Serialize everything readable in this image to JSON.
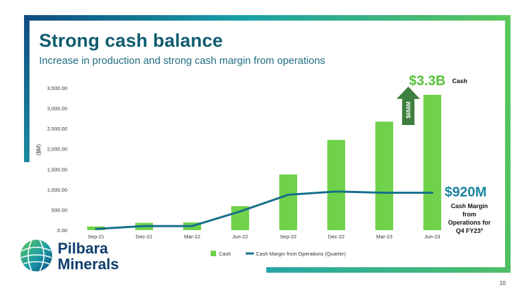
{
  "slide": {
    "title": "Strong cash balance",
    "subtitle": "Increase in production and strong cash margin from operations",
    "page_number": "10",
    "logo_text": [
      "Pilbara",
      "Minerals"
    ]
  },
  "colors": {
    "bar": "#6fd24a",
    "line": "#136e8c",
    "title": "#0f5c6e",
    "arrow": "#3f7f3f",
    "callout_green": "#55c23a",
    "callout_teal": "#1b85a1"
  },
  "chart_data": {
    "type": "bar",
    "categories": [
      "Sep-21",
      "Dec-21",
      "Mar-22",
      "Jun-22",
      "Sep-22",
      "Dec-22",
      "Mar-23",
      "Jun-23"
    ],
    "series": [
      {
        "name": "Cash",
        "type": "bar",
        "values": [
          90,
          180,
          190,
          590,
          1370,
          2220,
          2670,
          3330
        ]
      },
      {
        "name": "Cash Margin from Operations (Quarter)",
        "type": "line",
        "values": [
          30,
          100,
          100,
          460,
          870,
          950,
          920,
          920
        ]
      }
    ],
    "ylabel": "($M)",
    "ylim": [
      0,
      3500
    ],
    "yticks": [
      0,
      500,
      1000,
      1500,
      2000,
      2500,
      3000,
      3500
    ],
    "ytick_labels": [
      "0.00",
      "500.00",
      "1,000.00",
      "1,500.00",
      "2,000.00",
      "2,500.00",
      "3,000.00",
      "3,500.00"
    ],
    "legend": [
      "Cash",
      "Cash Margin from Operations (Quarter)"
    ],
    "legend_position": "bottom",
    "grid": false,
    "annotations": {
      "cash_value": "$3.3B",
      "cash_label": "Cash",
      "arrow_label": "$656M",
      "margin_value": "$920M",
      "margin_label_lines": [
        "Cash Margin",
        "from",
        "Operations for",
        "Q4 FY23"
      ],
      "margin_footnote": "4"
    }
  }
}
